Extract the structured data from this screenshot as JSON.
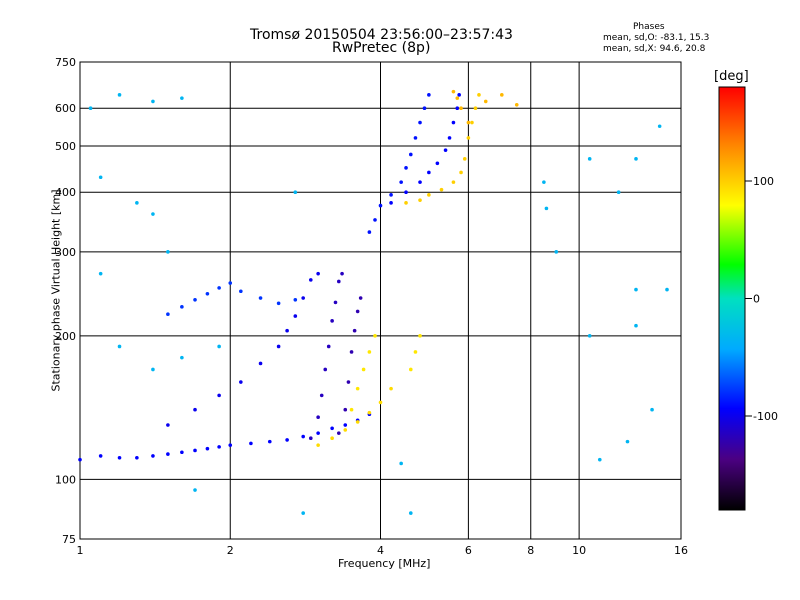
{
  "header": {
    "title_line1": "Tromsø 20150504 23:56:00–23:57:43",
    "title_line2": "RwPretec (8p)"
  },
  "phase_box": {
    "heading": "Phases",
    "o_line": "mean, sd,O: -83.1, 15.3",
    "x_line": "mean, sd,X: 94.6, 20.8"
  },
  "colorbar": {
    "unit_label": "[deg]",
    "tick_labels": [
      "100",
      "0",
      "-100"
    ],
    "ticks": [
      100,
      0,
      -100
    ],
    "range": [
      -180,
      180
    ]
  },
  "chart_data": {
    "type": "scatter",
    "title": "Tromsø 20150504 23:56:00–23:57:43",
    "subtitle": "RwPretec (8p)",
    "xlabel": "Frequency [MHz]",
    "ylabel": "Stationary phase Virtual Height [km]",
    "x_scale": "log2",
    "y_scale": "log",
    "xlim": [
      1,
      16
    ],
    "ylim": [
      75,
      750
    ],
    "x_tick_values": [
      1,
      2,
      4,
      6,
      8,
      10,
      16
    ],
    "x_tick_labels": [
      "1",
      "2",
      "4",
      "6",
      "8",
      "10",
      "16"
    ],
    "y_tick_values": [
      75,
      100,
      200,
      300,
      400,
      500,
      600,
      750
    ],
    "y_tick_labels": [
      "75",
      "100",
      "200",
      "300",
      "400",
      "500",
      "600",
      "750"
    ],
    "grid": true,
    "color_encoding": "phase [deg]",
    "series": [
      {
        "trace": "o-trace F-layer low",
        "phase": -100,
        "points": [
          [
            1.0,
            110
          ],
          [
            1.1,
            112
          ],
          [
            1.2,
            111
          ],
          [
            1.3,
            111
          ],
          [
            1.4,
            112
          ],
          [
            1.5,
            113
          ],
          [
            1.6,
            114
          ],
          [
            1.7,
            115
          ],
          [
            1.8,
            116
          ],
          [
            1.9,
            117
          ],
          [
            2.0,
            118
          ],
          [
            2.2,
            119
          ],
          [
            2.4,
            120
          ],
          [
            2.6,
            121
          ],
          [
            2.8,
            123
          ],
          [
            3.0,
            125
          ],
          [
            3.2,
            128
          ],
          [
            3.4,
            130
          ],
          [
            3.6,
            133
          ],
          [
            3.8,
            137
          ]
        ]
      },
      {
        "trace": "o-trace F-layer upper branch",
        "phase": -105,
        "points": [
          [
            1.5,
            130
          ],
          [
            1.7,
            140
          ],
          [
            1.9,
            150
          ],
          [
            2.1,
            160
          ],
          [
            2.3,
            175
          ],
          [
            2.5,
            190
          ],
          [
            2.6,
            205
          ],
          [
            2.7,
            220
          ],
          [
            2.8,
            240
          ],
          [
            2.9,
            262
          ],
          [
            3.0,
            270
          ]
        ]
      },
      {
        "trace": "o-trace steep branch",
        "phase": -120,
        "points": [
          [
            2.9,
            122
          ],
          [
            3.0,
            135
          ],
          [
            3.05,
            150
          ],
          [
            3.1,
            170
          ],
          [
            3.15,
            190
          ],
          [
            3.2,
            215
          ],
          [
            3.25,
            235
          ],
          [
            3.3,
            260
          ],
          [
            3.35,
            270
          ]
        ]
      },
      {
        "trace": "o-trace far branch",
        "phase": -125,
        "points": [
          [
            3.3,
            125
          ],
          [
            3.4,
            140
          ],
          [
            3.45,
            160
          ],
          [
            3.5,
            185
          ],
          [
            3.55,
            205
          ],
          [
            3.6,
            225
          ],
          [
            3.65,
            240
          ]
        ]
      },
      {
        "trace": "o-trace sporadic cloud",
        "phase": -85,
        "points": [
          [
            1.5,
            222
          ],
          [
            1.6,
            230
          ],
          [
            1.7,
            238
          ],
          [
            1.8,
            245
          ],
          [
            1.9,
            252
          ],
          [
            2.0,
            258
          ],
          [
            2.1,
            248
          ],
          [
            2.3,
            240
          ],
          [
            2.5,
            234
          ],
          [
            2.7,
            238
          ]
        ]
      },
      {
        "trace": "x-trace lower",
        "phase": 95,
        "points": [
          [
            3.0,
            118
          ],
          [
            3.2,
            122
          ],
          [
            3.4,
            127
          ],
          [
            3.6,
            132
          ],
          [
            3.8,
            138
          ],
          [
            4.0,
            145
          ],
          [
            4.2,
            155
          ]
        ]
      },
      {
        "trace": "x-trace branch",
        "phase": 90,
        "points": [
          [
            3.5,
            140
          ],
          [
            3.6,
            155
          ],
          [
            3.7,
            170
          ],
          [
            3.8,
            185
          ],
          [
            3.9,
            200
          ],
          [
            4.6,
            170
          ],
          [
            4.7,
            185
          ],
          [
            4.8,
            200
          ]
        ]
      },
      {
        "trace": "o-trace upper F2 A",
        "phase": -95,
        "points": [
          [
            3.8,
            330
          ],
          [
            3.9,
            350
          ],
          [
            4.0,
            375
          ],
          [
            4.2,
            395
          ],
          [
            4.4,
            420
          ],
          [
            4.5,
            450
          ],
          [
            4.6,
            480
          ],
          [
            4.7,
            520
          ],
          [
            4.8,
            560
          ],
          [
            4.9,
            600
          ],
          [
            5.0,
            640
          ]
        ]
      },
      {
        "trace": "o-trace upper F2 B",
        "phase": -100,
        "points": [
          [
            4.2,
            380
          ],
          [
            4.5,
            400
          ],
          [
            4.8,
            420
          ],
          [
            5.0,
            440
          ],
          [
            5.2,
            460
          ],
          [
            5.4,
            490
          ],
          [
            5.5,
            520
          ],
          [
            5.6,
            560
          ],
          [
            5.7,
            600
          ],
          [
            5.75,
            640
          ]
        ]
      },
      {
        "trace": "x-trace upper F2",
        "phase": 100,
        "points": [
          [
            4.5,
            380
          ],
          [
            4.8,
            385
          ],
          [
            5.0,
            395
          ],
          [
            5.3,
            405
          ],
          [
            5.6,
            420
          ],
          [
            5.8,
            440
          ],
          [
            5.9,
            470
          ],
          [
            6.0,
            520
          ],
          [
            6.1,
            560
          ],
          [
            6.2,
            600
          ],
          [
            6.3,
            640
          ]
        ]
      },
      {
        "trace": "x-trace top cluster",
        "phase": 110,
        "points": [
          [
            5.6,
            650
          ],
          [
            5.7,
            630
          ],
          [
            5.8,
            600
          ],
          [
            6.0,
            560
          ],
          [
            6.5,
            620
          ],
          [
            7.0,
            640
          ],
          [
            7.5,
            610
          ]
        ]
      },
      {
        "trace": "scattered noise",
        "phase": -40,
        "points": [
          [
            1.05,
            600
          ],
          [
            1.2,
            640
          ],
          [
            1.4,
            620
          ],
          [
            1.6,
            630
          ],
          [
            1.1,
            430
          ],
          [
            1.3,
            380
          ],
          [
            1.4,
            360
          ],
          [
            1.5,
            300
          ],
          [
            1.1,
            270
          ],
          [
            1.2,
            190
          ],
          [
            1.4,
            170
          ],
          [
            1.6,
            180
          ],
          [
            1.9,
            190
          ],
          [
            2.7,
            400
          ],
          [
            1.7,
            95
          ],
          [
            2.8,
            85
          ],
          [
            4.4,
            108
          ],
          [
            4.6,
            85
          ],
          [
            8.5,
            420
          ],
          [
            9.0,
            300
          ],
          [
            10.5,
            470
          ],
          [
            12,
            400
          ],
          [
            13,
            470
          ],
          [
            14.5,
            550
          ],
          [
            13,
            210
          ],
          [
            12.5,
            120
          ],
          [
            11,
            110
          ],
          [
            13,
            250
          ],
          [
            14,
            140
          ],
          [
            15,
            250
          ],
          [
            8.6,
            370
          ],
          [
            10.5,
            200
          ]
        ]
      }
    ]
  }
}
